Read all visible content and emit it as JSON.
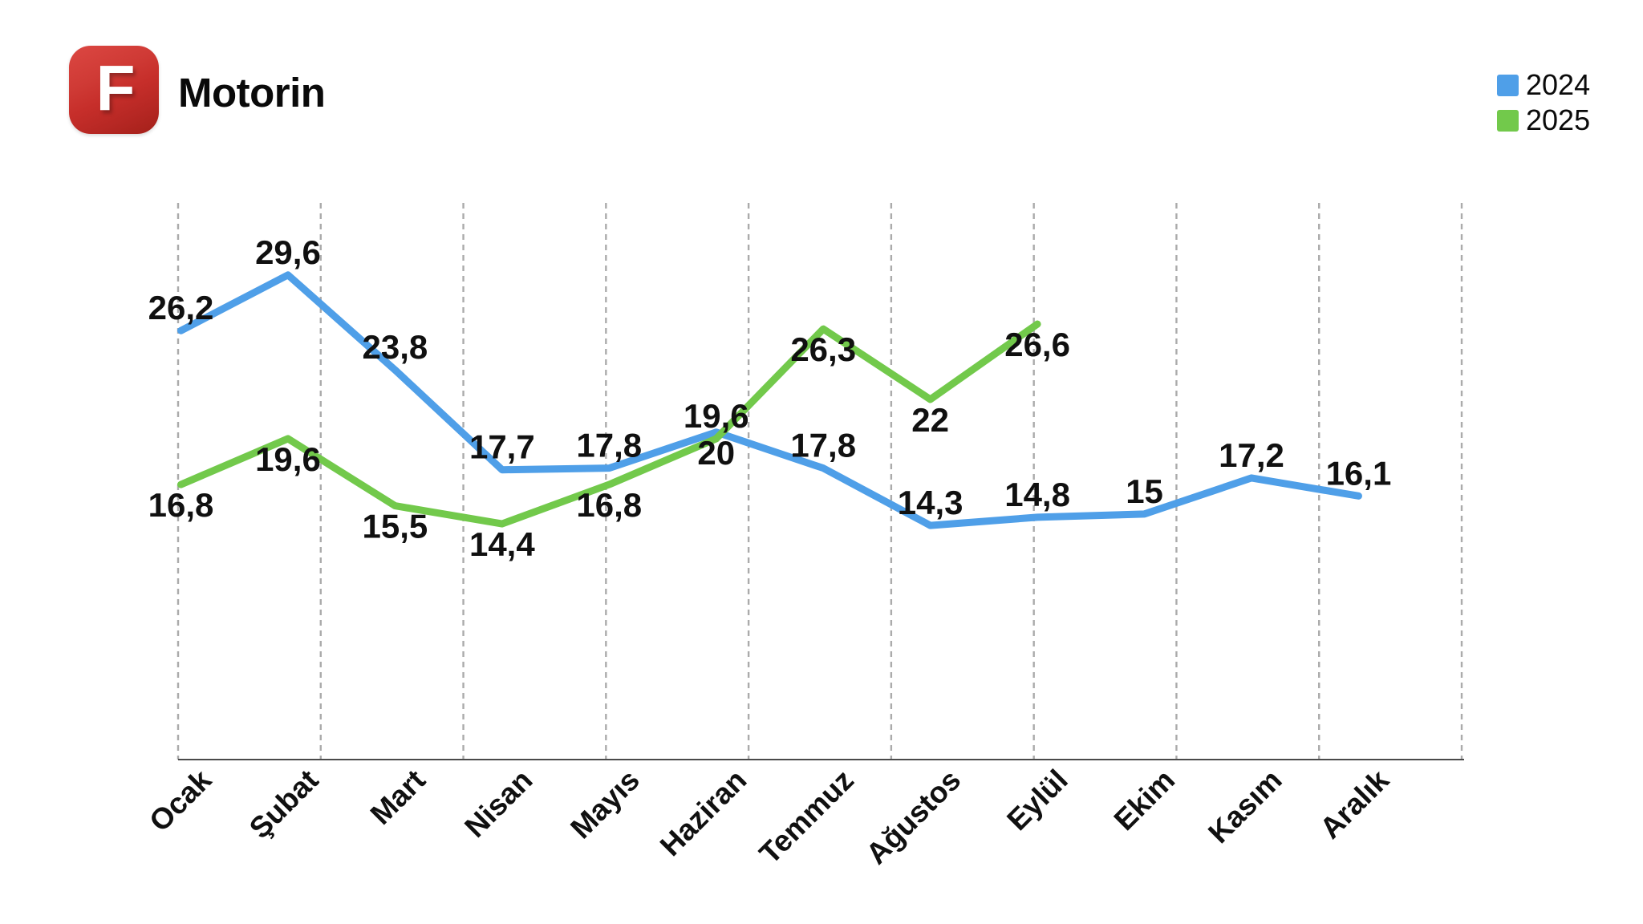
{
  "header": {
    "logo_letter": "F",
    "title": "Motorin"
  },
  "legend": {
    "items": [
      {
        "label": "2024"
      },
      {
        "label": "2025"
      }
    ]
  },
  "colors": {
    "series_2024": "#4f9fe8",
    "series_2025": "#72c94b",
    "gridline": "#ababab",
    "axis": "#4a4a4a",
    "text": "#101010",
    "logo_red": "#c62e2a"
  },
  "chart_data": {
    "type": "line",
    "title": "Motorin",
    "categories": [
      "Ocak",
      "Şubat",
      "Mart",
      "Nisan",
      "Mayıs",
      "Haziran",
      "Temmuz",
      "Ağustos",
      "Eylül",
      "Ekim",
      "Kasım",
      "Aralık"
    ],
    "series": [
      {
        "name": "2024",
        "color": "#4f9fe8",
        "values": [
          26.2,
          29.6,
          23.8,
          17.7,
          17.8,
          20,
          17.8,
          14.3,
          14.8,
          15,
          17.2,
          16.1
        ],
        "labels": [
          "26,2",
          "29,6",
          "23,8",
          "17,7",
          "17,8",
          "20",
          "17,8",
          "14,3",
          "14,8",
          "15",
          "17,2",
          "16,1"
        ],
        "label_positions": [
          "above",
          "above",
          "above",
          "above",
          "above",
          "below",
          "above",
          "above",
          "above",
          "above",
          "above",
          "above"
        ]
      },
      {
        "name": "2025",
        "color": "#72c94b",
        "values": [
          16.8,
          19.6,
          15.5,
          14.4,
          16.8,
          19.6,
          26.3,
          22,
          26.6
        ],
        "labels": [
          "16,8",
          "19,6",
          "15,5",
          "14,4",
          "16,8",
          "19,6",
          "26,3",
          "22",
          "26,6"
        ],
        "label_positions": [
          "below",
          "below",
          "below",
          "below",
          "below",
          "above",
          "below",
          "below",
          "below"
        ]
      }
    ],
    "xlabel": "",
    "ylabel": "",
    "ylim": [
      0,
      34
    ],
    "grid": "vertical-dashed",
    "legend_position": "top-right",
    "label_decimal_separator": ","
  }
}
